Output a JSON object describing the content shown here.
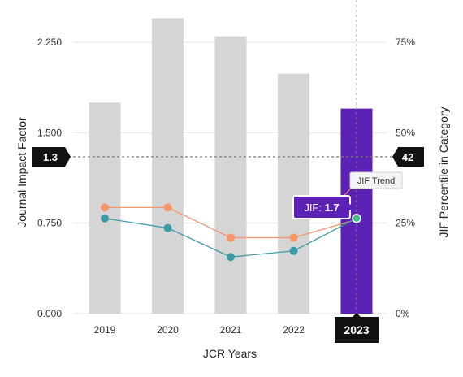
{
  "chart_data": {
    "type": "bar",
    "categories": [
      "2019",
      "2020",
      "2021",
      "2022",
      "2023"
    ],
    "series": [
      {
        "name": "JIF",
        "kind": "bar",
        "axis": "left",
        "values": [
          1.75,
          2.45,
          2.3,
          1.99,
          1.7
        ]
      },
      {
        "name": "JIF Trend",
        "kind": "line",
        "axis": "left",
        "color": "#f5956a",
        "values": [
          0.88,
          0.88,
          0.63,
          0.63,
          0.78
        ]
      },
      {
        "name": "",
        "kind": "line",
        "axis": "left",
        "color": "#3a9aa6",
        "values": [
          0.79,
          0.71,
          0.47,
          0.52,
          0.79
        ]
      }
    ],
    "xlabel": "JCR Years",
    "ylabel": "Journal Impact Factor",
    "y2label": "JIF Percentile in Category",
    "ylim": [
      0,
      2.6
    ],
    "y2lim": [
      0,
      86.67
    ],
    "yticks": [
      "0.000",
      "0.750",
      "1.500",
      "2.250"
    ],
    "y2ticks": [
      "0%",
      "25%",
      "50%",
      "75%"
    ],
    "highlight_category": "2023",
    "reference_line": {
      "left_value": 1.3,
      "left_label": "1.3",
      "right_label": "42"
    },
    "tooltip": {
      "prefix": "JIF: ",
      "value": "1.7",
      "trend_label": "JIF Trend"
    },
    "grid": true,
    "colors": {
      "bar": "#d4d5d4",
      "highlight_bar": "#5b22b5",
      "trend_orange": "#f5956a",
      "trend_teal": "#3a9aa6",
      "highlight_point": "#3cc08a",
      "badge": "#111111"
    }
  }
}
